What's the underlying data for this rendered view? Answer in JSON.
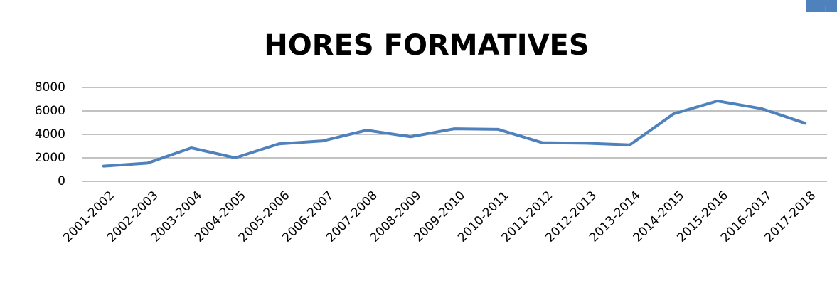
{
  "chart_data": {
    "type": "line",
    "title": "HORES FORMATIVES",
    "categories": [
      "2001-2002",
      "2002-2003",
      "2003-2004",
      "2004-2005",
      "2005-2006",
      "2006-2007",
      "2007-2008",
      "2008-2009",
      "2009-2010",
      "2010-2011",
      "2011-2012",
      "2012-2013",
      "2013-2014",
      "2014-2015",
      "2015-2016",
      "2016-2017",
      "2017-2018"
    ],
    "values": [
      1300,
      1550,
      2850,
      2000,
      3200,
      3450,
      4360,
      3800,
      4480,
      4430,
      3300,
      3250,
      3100,
      5750,
      6850,
      6200,
      4950
    ],
    "color": "#4f81bd",
    "ylim": [
      0,
      8000
    ],
    "yticks": [
      0,
      2000,
      4000,
      6000,
      8000
    ],
    "grid": true
  }
}
